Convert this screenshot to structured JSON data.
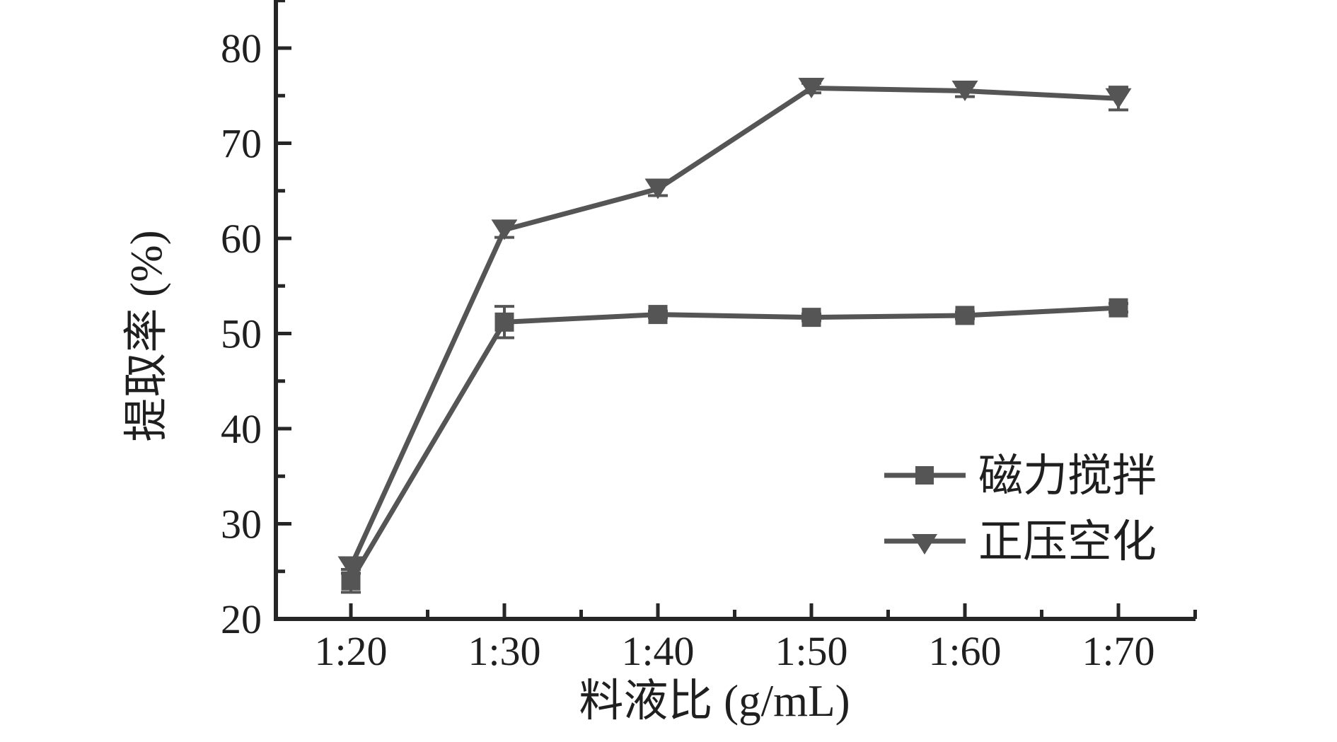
{
  "chart_data": {
    "type": "line",
    "title": "",
    "xlabel": "料液比 (g/mL)",
    "ylabel": "提取率 (%)",
    "categories": [
      "1:20",
      "1:30",
      "1:40",
      "1:50",
      "1:60",
      "1:70"
    ],
    "series": [
      {
        "name": "磁力搅拌",
        "marker": "square",
        "values": [
          24.0,
          51.2,
          52.0,
          51.7,
          51.9,
          52.7
        ],
        "errors": [
          1.2,
          1.65,
          0.35,
          0.35,
          0.35,
          0.45
        ]
      },
      {
        "name": "正压空化",
        "marker": "triangle-down",
        "values": [
          25.5,
          60.9,
          65.2,
          75.8,
          75.5,
          74.7
        ],
        "errors": [
          0.7,
          0.8,
          0.7,
          0.5,
          0.6,
          1.2
        ]
      }
    ],
    "y_ticks": [
      20,
      30,
      40,
      50,
      60,
      70,
      80
    ],
    "y_minor_step": 5,
    "ylim": [
      20,
      85
    ],
    "grid": false,
    "legend_position": "right-middle",
    "colors": {
      "series": "#555555",
      "axis": "#262626",
      "text": "#1f1f1f",
      "background": "#ffffff"
    }
  }
}
